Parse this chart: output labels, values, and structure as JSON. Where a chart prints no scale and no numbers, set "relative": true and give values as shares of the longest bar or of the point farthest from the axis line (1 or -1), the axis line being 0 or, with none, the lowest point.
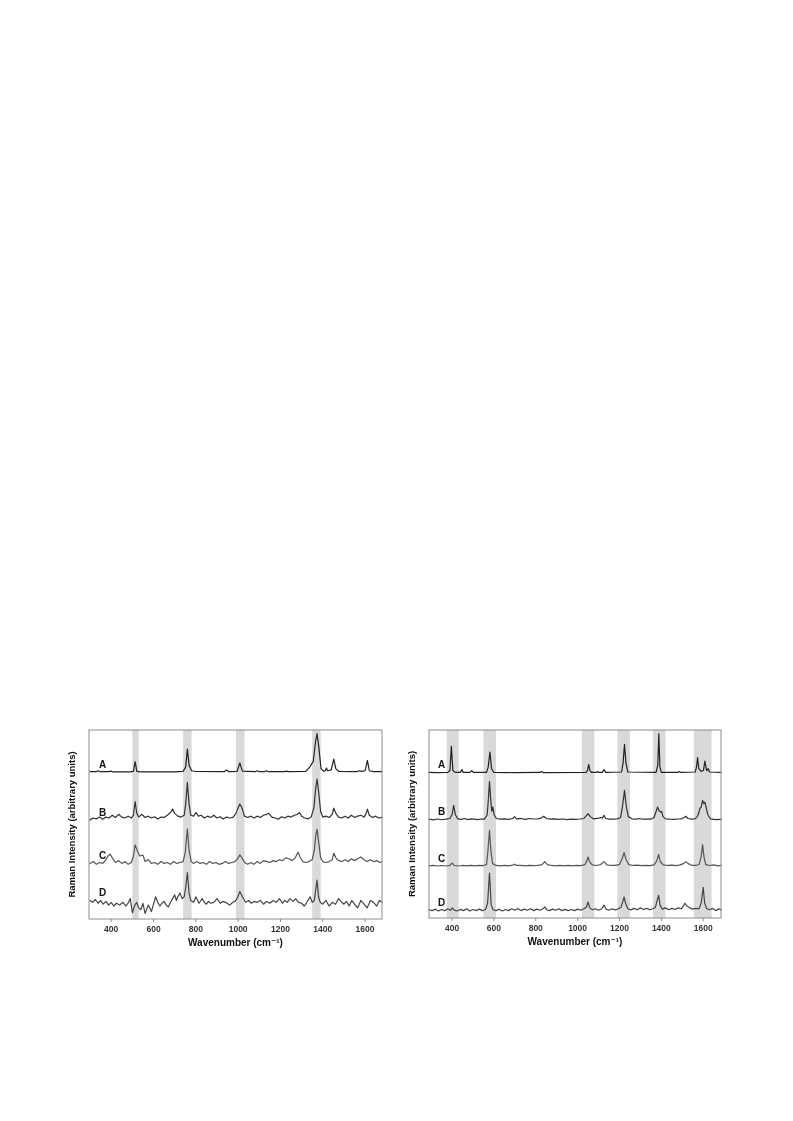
{
  "chart_data": [
    {
      "type": "line",
      "xlabel": "Wavenumber (cm⁻¹)",
      "ylabel": "Raman Intensity (arbitrary units)",
      "relative": true,
      "xlim": [
        295,
        1680
      ],
      "xticks": [
        400,
        600,
        800,
        1000,
        1200,
        1400,
        1600
      ],
      "bands": [
        {
          "axis": "x",
          "from": 500,
          "to": 530,
          "color": "#d9d9d9"
        },
        {
          "axis": "x",
          "from": 740,
          "to": 780,
          "color": "#d9d9d9"
        },
        {
          "axis": "x",
          "from": 990,
          "to": 1030,
          "color": "#d9d9d9"
        },
        {
          "axis": "x",
          "from": 1350,
          "to": 1390,
          "color": "#d9d9d9"
        }
      ],
      "series": [
        {
          "name": "A",
          "color": "#222222",
          "x": [
            300,
            330,
            338,
            348,
            390,
            398,
            406,
            490,
            505,
            513,
            521,
            540,
            700,
            740,
            752,
            760,
            768,
            780,
            800,
            935,
            945,
            955,
            995,
            1008,
            1020,
            1080,
            1091,
            1100,
            1125,
            1134,
            1143,
            1220,
            1228,
            1236,
            1320,
            1338,
            1355,
            1365,
            1373,
            1381,
            1392,
            1405,
            1412,
            1417,
            1423,
            1440,
            1452,
            1462,
            1475,
            1560,
            1575,
            1585,
            1600,
            1611,
            1620,
            1640,
            1680
          ],
          "values": [
            0.795,
            0.795,
            0.8,
            0.795,
            0.795,
            0.798,
            0.794,
            0.794,
            0.797,
            0.85,
            0.797,
            0.794,
            0.794,
            0.797,
            0.82,
            0.917,
            0.83,
            0.8,
            0.796,
            0.795,
            0.805,
            0.795,
            0.797,
            0.842,
            0.798,
            0.795,
            0.8,
            0.795,
            0.795,
            0.8,
            0.795,
            0.795,
            0.798,
            0.795,
            0.797,
            0.82,
            0.85,
            0.95,
            1.0,
            0.93,
            0.81,
            0.797,
            0.8,
            0.815,
            0.8,
            0.805,
            0.863,
            0.81,
            0.797,
            0.795,
            0.8,
            0.797,
            0.8,
            0.856,
            0.8,
            0.795,
            0.795
          ]
        },
        {
          "name": "B",
          "color": "#333333",
          "x": [
            300,
            315,
            330,
            345,
            360,
            375,
            390,
            405,
            420,
            435,
            450,
            465,
            480,
            495,
            505,
            513,
            521,
            530,
            545,
            560,
            575,
            590,
            605,
            620,
            635,
            650,
            665,
            680,
            690,
            700,
            715,
            730,
            745,
            752,
            760,
            768,
            776,
            790,
            800,
            812,
            825,
            840,
            855,
            870,
            885,
            900,
            915,
            930,
            945,
            960,
            975,
            990,
            1000,
            1008,
            1018,
            1030,
            1045,
            1060,
            1075,
            1090,
            1105,
            1120,
            1135,
            1145,
            1160,
            1175,
            1190,
            1205,
            1220,
            1235,
            1250,
            1265,
            1280,
            1290,
            1300,
            1315,
            1330,
            1345,
            1358,
            1366,
            1373,
            1381,
            1390,
            1400,
            1415,
            1430,
            1445,
            1452,
            1462,
            1475,
            1490,
            1505,
            1520,
            1535,
            1550,
            1565,
            1580,
            1595,
            1605,
            1611,
            1620,
            1635,
            1650,
            1665,
            1680
          ],
          "values": [
            0.535,
            0.545,
            0.54,
            0.55,
            0.538,
            0.55,
            0.545,
            0.56,
            0.548,
            0.565,
            0.55,
            0.545,
            0.555,
            0.545,
            0.56,
            0.634,
            0.57,
            0.55,
            0.565,
            0.548,
            0.555,
            0.545,
            0.552,
            0.54,
            0.55,
            0.548,
            0.56,
            0.575,
            0.593,
            0.57,
            0.555,
            0.55,
            0.56,
            0.62,
            0.737,
            0.62,
            0.56,
            0.555,
            0.575,
            0.555,
            0.56,
            0.545,
            0.555,
            0.548,
            0.56,
            0.545,
            0.552,
            0.54,
            0.55,
            0.545,
            0.548,
            0.57,
            0.6,
            0.62,
            0.6,
            0.555,
            0.548,
            0.555,
            0.545,
            0.555,
            0.548,
            0.56,
            0.565,
            0.57,
            0.55,
            0.545,
            0.538,
            0.552,
            0.545,
            0.555,
            0.55,
            0.56,
            0.565,
            0.575,
            0.555,
            0.545,
            0.54,
            0.55,
            0.6,
            0.7,
            0.755,
            0.68,
            0.58,
            0.55,
            0.555,
            0.548,
            0.565,
            0.598,
            0.57,
            0.55,
            0.545,
            0.555,
            0.545,
            0.56,
            0.548,
            0.555,
            0.56,
            0.55,
            0.57,
            0.593,
            0.56,
            0.548,
            0.555,
            0.545,
            0.548
          ]
        },
        {
          "name": "C",
          "color": "#555555",
          "x": [
            300,
            315,
            330,
            345,
            360,
            375,
            385,
            395,
            405,
            420,
            435,
            450,
            465,
            480,
            495,
            505,
            513,
            523,
            535,
            550,
            560,
            575,
            590,
            605,
            620,
            635,
            650,
            665,
            680,
            695,
            710,
            725,
            740,
            750,
            760,
            768,
            778,
            790,
            805,
            820,
            835,
            850,
            865,
            880,
            895,
            910,
            925,
            940,
            955,
            970,
            985,
            1000,
            1008,
            1018,
            1030,
            1045,
            1060,
            1075,
            1090,
            1105,
            1120,
            1135,
            1150,
            1165,
            1180,
            1195,
            1210,
            1225,
            1240,
            1255,
            1270,
            1283,
            1293,
            1305,
            1320,
            1335,
            1350,
            1360,
            1367,
            1373,
            1380,
            1390,
            1400,
            1415,
            1430,
            1445,
            1452,
            1462,
            1475,
            1490,
            1505,
            1520,
            1535,
            1550,
            1565,
            1580,
            1595,
            1610,
            1625,
            1640,
            1655,
            1670,
            1680
          ],
          "values": [
            0.3,
            0.31,
            0.295,
            0.305,
            0.3,
            0.32,
            0.34,
            0.35,
            0.33,
            0.305,
            0.315,
            0.3,
            0.31,
            0.295,
            0.305,
            0.34,
            0.4,
            0.37,
            0.34,
            0.345,
            0.31,
            0.32,
            0.3,
            0.305,
            0.295,
            0.31,
            0.3,
            0.305,
            0.295,
            0.31,
            0.3,
            0.305,
            0.31,
            0.36,
            0.486,
            0.37,
            0.31,
            0.3,
            0.31,
            0.3,
            0.305,
            0.295,
            0.31,
            0.3,
            0.305,
            0.295,
            0.3,
            0.31,
            0.3,
            0.305,
            0.31,
            0.33,
            0.346,
            0.33,
            0.305,
            0.295,
            0.305,
            0.295,
            0.31,
            0.3,
            0.315,
            0.31,
            0.305,
            0.315,
            0.31,
            0.32,
            0.315,
            0.33,
            0.325,
            0.315,
            0.33,
            0.36,
            0.335,
            0.31,
            0.305,
            0.31,
            0.32,
            0.37,
            0.45,
            0.485,
            0.42,
            0.33,
            0.31,
            0.305,
            0.31,
            0.32,
            0.355,
            0.33,
            0.315,
            0.31,
            0.32,
            0.31,
            0.325,
            0.315,
            0.325,
            0.335,
            0.32,
            0.31,
            0.32,
            0.31,
            0.315,
            0.305,
            0.31
          ]
        },
        {
          "name": "D",
          "color": "#444444",
          "x": [
            300,
            312,
            325,
            338,
            350,
            362,
            375,
            388,
            400,
            412,
            425,
            440,
            455,
            470,
            482,
            490,
            500,
            510,
            520,
            530,
            540,
            550,
            560,
            575,
            590,
            600,
            610,
            620,
            630,
            640,
            650,
            660,
            670,
            680,
            690,
            700,
            708,
            715,
            725,
            735,
            745,
            752,
            760,
            768,
            776,
            790,
            800,
            815,
            830,
            840,
            850,
            860,
            870,
            885,
            900,
            915,
            928,
            940,
            960,
            975,
            985,
            995,
            1008,
            1020,
            1035,
            1050,
            1062,
            1075,
            1090,
            1105,
            1120,
            1135,
            1150,
            1165,
            1180,
            1195,
            1210,
            1220,
            1232,
            1245,
            1260,
            1272,
            1285,
            1300,
            1312,
            1325,
            1340,
            1350,
            1360,
            1367,
            1373,
            1380,
            1388,
            1400,
            1415,
            1430,
            1445,
            1460,
            1475,
            1490,
            1500,
            1512,
            1525,
            1537,
            1550,
            1565,
            1580,
            1595,
            1610,
            1625,
            1640,
            1655,
            1668,
            1680
          ],
          "values": [
            0.1,
            0.09,
            0.105,
            0.085,
            0.1,
            0.08,
            0.095,
            0.075,
            0.09,
            0.07,
            0.085,
            0.075,
            0.09,
            0.07,
            0.09,
            0.11,
            0.034,
            0.07,
            0.09,
            0.06,
            0.05,
            0.085,
            0.03,
            0.075,
            0.04,
            0.08,
            0.12,
            0.09,
            0.07,
            0.085,
            0.095,
            0.075,
            0.065,
            0.09,
            0.11,
            0.13,
            0.1,
            0.12,
            0.14,
            0.11,
            0.12,
            0.17,
            0.25,
            0.14,
            0.1,
            0.09,
            0.12,
            0.085,
            0.11,
            0.09,
            0.08,
            0.095,
            0.085,
            0.09,
            0.11,
            0.085,
            0.095,
            0.09,
            0.075,
            0.09,
            0.095,
            0.11,
            0.148,
            0.12,
            0.09,
            0.1,
            0.085,
            0.095,
            0.09,
            0.1,
            0.08,
            0.095,
            0.085,
            0.1,
            0.09,
            0.11,
            0.085,
            0.1,
            0.09,
            0.11,
            0.095,
            0.11,
            0.09,
            0.085,
            0.07,
            0.09,
            0.12,
            0.09,
            0.1,
            0.16,
            0.21,
            0.12,
            0.09,
            0.08,
            0.1,
            0.07,
            0.09,
            0.08,
            0.11,
            0.09,
            0.08,
            0.095,
            0.07,
            0.1,
            0.08,
            0.06,
            0.1,
            0.08,
            0.06,
            0.1,
            0.09,
            0.07,
            0.1,
            0.09
          ]
        }
      ]
    },
    {
      "type": "line",
      "xlabel": "Wavenumber (cm⁻¹)",
      "ylabel": "Raman Intensity (arbitrary units)",
      "relative": true,
      "xlim": [
        290,
        1685
      ],
      "xticks": [
        400,
        600,
        800,
        1000,
        1200,
        1400,
        1600
      ],
      "bands": [
        {
          "axis": "x",
          "from": 375,
          "to": 432,
          "color": "#d9d9d9"
        },
        {
          "axis": "x",
          "from": 550,
          "to": 610,
          "color": "#d9d9d9"
        },
        {
          "axis": "x",
          "from": 1020,
          "to": 1080,
          "color": "#d9d9d9"
        },
        {
          "axis": "x",
          "from": 1190,
          "to": 1250,
          "color": "#d9d9d9"
        },
        {
          "axis": "x",
          "from": 1360,
          "to": 1420,
          "color": "#d9d9d9"
        },
        {
          "axis": "x",
          "from": 1555,
          "to": 1640,
          "color": "#d9d9d9"
        }
      ],
      "series": [
        {
          "name": "A",
          "color": "#222222",
          "x": [
            290,
            330,
            380,
            390,
            397,
            404,
            415,
            440,
            447,
            454,
            486,
            494,
            502,
            565,
            573,
            581,
            589,
            600,
            700,
            820,
            827,
            834,
            1040,
            1047,
            1053,
            1059,
            1066,
            1090,
            1095,
            1100,
            1118,
            1126,
            1134,
            1210,
            1217,
            1224,
            1231,
            1240,
            1375,
            1383,
            1388,
            1393,
            1400,
            1478,
            1485,
            1492,
            1562,
            1568,
            1573,
            1579,
            1590,
            1601,
            1608,
            1616,
            1624,
            1630,
            1685
          ],
          "values": [
            0.79,
            0.789,
            0.79,
            0.8,
            0.931,
            0.8,
            0.79,
            0.79,
            0.805,
            0.79,
            0.79,
            0.8,
            0.79,
            0.79,
            0.82,
            0.9,
            0.81,
            0.79,
            0.789,
            0.79,
            0.795,
            0.789,
            0.79,
            0.8,
            0.833,
            0.8,
            0.79,
            0.79,
            0.795,
            0.79,
            0.79,
            0.806,
            0.79,
            0.792,
            0.84,
            0.942,
            0.84,
            0.792,
            0.79,
            0.83,
            1.0,
            0.82,
            0.79,
            0.79,
            0.795,
            0.79,
            0.792,
            0.82,
            0.87,
            0.81,
            0.795,
            0.8,
            0.851,
            0.8,
            0.81,
            0.792,
            0.79
          ]
        },
        {
          "name": "B",
          "color": "#333333",
          "x": [
            290,
            310,
            330,
            350,
            370,
            390,
            400,
            408,
            416,
            428,
            445,
            460,
            475,
            490,
            505,
            520,
            540,
            555,
            568,
            574,
            579,
            585,
            590,
            595,
            601,
            612,
            630,
            650,
            670,
            690,
            699,
            708,
            730,
            750,
            770,
            790,
            810,
            825,
            838,
            850,
            870,
            890,
            910,
            930,
            950,
            970,
            990,
            1010,
            1030,
            1042,
            1050,
            1060,
            1075,
            1095,
            1110,
            1118,
            1126,
            1134,
            1150,
            1170,
            1190,
            1205,
            1215,
            1224,
            1232,
            1242,
            1260,
            1280,
            1297,
            1310,
            1330,
            1350,
            1365,
            1374,
            1382,
            1390,
            1396,
            1401,
            1408,
            1420,
            1440,
            1460,
            1480,
            1495,
            1508,
            1517,
            1527,
            1545,
            1560,
            1572,
            1580,
            1584,
            1590,
            1597,
            1603,
            1608,
            1614,
            1622,
            1635,
            1660,
            1685
          ],
          "values": [
            0.536,
            0.532,
            0.537,
            0.533,
            0.536,
            0.54,
            0.56,
            0.611,
            0.56,
            0.538,
            0.535,
            0.54,
            0.534,
            0.538,
            0.536,
            0.534,
            0.537,
            0.536,
            0.56,
            0.65,
            0.741,
            0.64,
            0.58,
            0.602,
            0.56,
            0.54,
            0.536,
            0.538,
            0.535,
            0.54,
            0.55,
            0.538,
            0.54,
            0.535,
            0.54,
            0.537,
            0.538,
            0.542,
            0.552,
            0.54,
            0.536,
            0.538,
            0.535,
            0.537,
            0.534,
            0.536,
            0.535,
            0.537,
            0.54,
            0.555,
            0.566,
            0.55,
            0.538,
            0.54,
            0.545,
            0.542,
            0.557,
            0.54,
            0.536,
            0.536,
            0.538,
            0.545,
            0.61,
            0.693,
            0.61,
            0.55,
            0.538,
            0.536,
            0.54,
            0.536,
            0.537,
            0.536,
            0.545,
            0.575,
            0.602,
            0.58,
            0.575,
            0.579,
            0.55,
            0.538,
            0.536,
            0.535,
            0.537,
            0.538,
            0.545,
            0.552,
            0.54,
            0.536,
            0.538,
            0.55,
            0.575,
            0.595,
            0.6,
            0.638,
            0.62,
            0.629,
            0.6,
            0.56,
            0.538,
            0.534,
            0.535
          ]
        },
        {
          "name": "C",
          "color": "#555555",
          "x": [
            290,
            310,
            330,
            350,
            370,
            390,
            401,
            410,
            430,
            450,
            470,
            490,
            510,
            530,
            550,
            565,
            572,
            579,
            586,
            594,
            610,
            630,
            650,
            670,
            690,
            699,
            708,
            730,
            750,
            770,
            790,
            810,
            830,
            843,
            855,
            875,
            895,
            915,
            935,
            955,
            975,
            995,
            1015,
            1035,
            1044,
            1050,
            1057,
            1070,
            1090,
            1110,
            1126,
            1140,
            1160,
            1180,
            1200,
            1212,
            1222,
            1232,
            1245,
            1265,
            1285,
            1305,
            1325,
            1345,
            1365,
            1378,
            1387,
            1395,
            1410,
            1430,
            1450,
            1470,
            1490,
            1505,
            1517,
            1528,
            1545,
            1565,
            1580,
            1590,
            1597,
            1604,
            1612,
            1630,
            1650,
            1670,
            1685
          ],
          "values": [
            0.283,
            0.286,
            0.282,
            0.285,
            0.282,
            0.286,
            0.298,
            0.285,
            0.282,
            0.285,
            0.283,
            0.286,
            0.283,
            0.285,
            0.284,
            0.29,
            0.37,
            0.476,
            0.36,
            0.295,
            0.285,
            0.283,
            0.286,
            0.283,
            0.287,
            0.292,
            0.285,
            0.286,
            0.283,
            0.286,
            0.284,
            0.286,
            0.29,
            0.306,
            0.29,
            0.285,
            0.283,
            0.286,
            0.283,
            0.286,
            0.283,
            0.285,
            0.284,
            0.29,
            0.31,
            0.331,
            0.305,
            0.288,
            0.285,
            0.29,
            0.306,
            0.288,
            0.285,
            0.286,
            0.29,
            0.32,
            0.355,
            0.315,
            0.29,
            0.285,
            0.287,
            0.284,
            0.286,
            0.284,
            0.288,
            0.31,
            0.345,
            0.305,
            0.288,
            0.285,
            0.287,
            0.284,
            0.288,
            0.295,
            0.306,
            0.295,
            0.286,
            0.285,
            0.29,
            0.33,
            0.398,
            0.33,
            0.29,
            0.285,
            0.288,
            0.283,
            0.286
          ]
        },
        {
          "name": "D",
          "color": "#444444",
          "x": [
            290,
            305,
            320,
            335,
            350,
            365,
            380,
            392,
            401,
            410,
            425,
            440,
            455,
            470,
            485,
            500,
            515,
            530,
            545,
            560,
            570,
            579,
            587,
            596,
            610,
            625,
            640,
            655,
            670,
            685,
            700,
            715,
            730,
            745,
            760,
            775,
            790,
            805,
            820,
            835,
            843,
            852,
            865,
            880,
            895,
            910,
            925,
            940,
            955,
            970,
            985,
            1000,
            1015,
            1030,
            1042,
            1050,
            1058,
            1070,
            1085,
            1100,
            1115,
            1126,
            1136,
            1150,
            1165,
            1180,
            1195,
            1208,
            1216,
            1222,
            1229,
            1240,
            1255,
            1270,
            1285,
            1300,
            1315,
            1330,
            1345,
            1360,
            1372,
            1381,
            1387,
            1394,
            1405,
            1420,
            1435,
            1450,
            1465,
            1480,
            1495,
            1505,
            1512,
            1520,
            1535,
            1550,
            1565,
            1580,
            1590,
            1600,
            1607,
            1617,
            1630,
            1645,
            1660,
            1675,
            1685
          ],
          "values": [
            0.045,
            0.04,
            0.048,
            0.038,
            0.046,
            0.04,
            0.05,
            0.042,
            0.055,
            0.043,
            0.038,
            0.047,
            0.04,
            0.05,
            0.038,
            0.046,
            0.04,
            0.048,
            0.04,
            0.046,
            0.08,
            0.244,
            0.07,
            0.045,
            0.04,
            0.048,
            0.038,
            0.046,
            0.04,
            0.05,
            0.042,
            0.052,
            0.04,
            0.048,
            0.042,
            0.05,
            0.04,
            0.048,
            0.042,
            0.05,
            0.06,
            0.045,
            0.04,
            0.048,
            0.042,
            0.05,
            0.04,
            0.047,
            0.04,
            0.046,
            0.04,
            0.048,
            0.042,
            0.05,
            0.06,
            0.087,
            0.055,
            0.045,
            0.05,
            0.042,
            0.05,
            0.07,
            0.048,
            0.042,
            0.05,
            0.044,
            0.05,
            0.06,
            0.09,
            0.114,
            0.08,
            0.05,
            0.044,
            0.052,
            0.045,
            0.055,
            0.046,
            0.052,
            0.045,
            0.05,
            0.06,
            0.1,
            0.123,
            0.07,
            0.048,
            0.055,
            0.045,
            0.052,
            0.046,
            0.055,
            0.05,
            0.065,
            0.08,
            0.068,
            0.055,
            0.048,
            0.052,
            0.05,
            0.08,
            0.166,
            0.08,
            0.05,
            0.045,
            0.052,
            0.04,
            0.05,
            0.044
          ]
        }
      ]
    }
  ]
}
